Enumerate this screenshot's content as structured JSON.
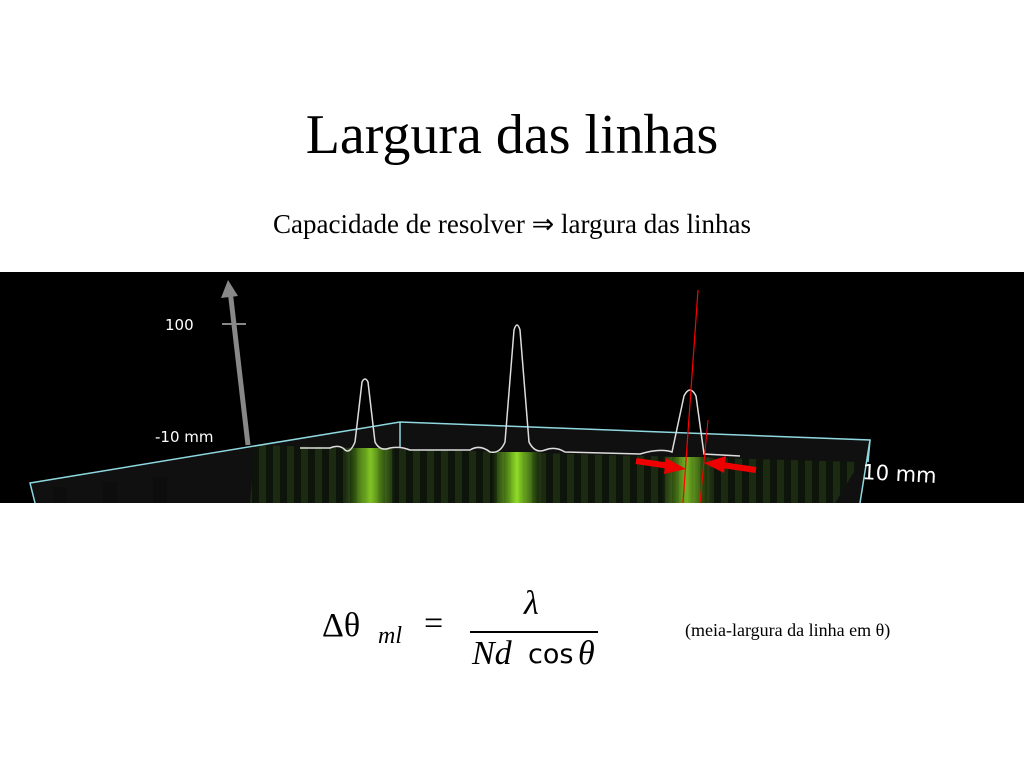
{
  "header": {
    "title": "Largura das linhas",
    "subtitle": "Capacidade de resolver ⇒ largura das linhas"
  },
  "figure": {
    "axis_top_label": "100",
    "axis_left_label": "-10 mm",
    "axis_right_label": "10 mm"
  },
  "formula": {
    "lhs": "Δθ",
    "subscript": "ml",
    "equals": "=",
    "numerator": "λ",
    "denominator_variables": "Nd",
    "denominator_function": "cos",
    "denominator_angle": "θ"
  },
  "note": "(meia-largura da linha em θ)"
}
